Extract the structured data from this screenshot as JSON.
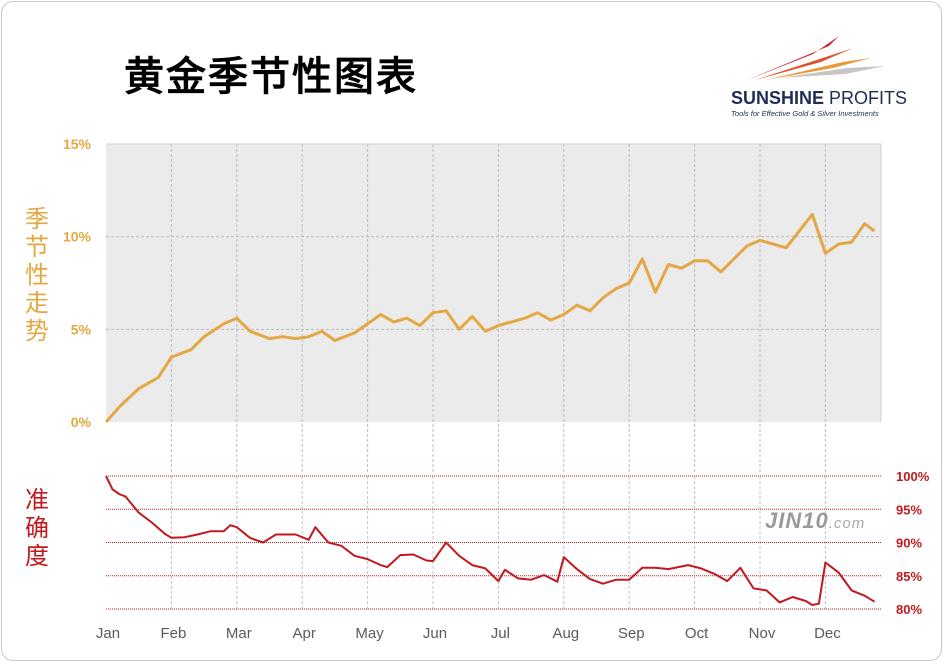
{
  "header": {
    "title": "黄金季节性图表"
  },
  "logo": {
    "name_bold": "SUNSHINE",
    "name_rest": " PROFITS",
    "tagline": "Tools for Effective Gold & Silver Investments"
  },
  "watermark": {
    "main": "JIN10",
    "suffix": ".com"
  },
  "colors": {
    "seasonal": "#e3a843",
    "accuracy": "#c2191f",
    "plot_bg": "#ebebeb",
    "grid": "#bdbdbd"
  },
  "chart_data": [
    {
      "type": "line",
      "ylabel": "季节性走势",
      "y_ticks": [
        "15%",
        "10%",
        "5%",
        "0%"
      ],
      "ylim": [
        0,
        15
      ],
      "grid": true,
      "categories": [
        "Jan",
        "Feb",
        "Mar",
        "Apr",
        "May",
        "Jun",
        "Jul",
        "Aug",
        "Sep",
        "Oct",
        "Nov",
        "Dec"
      ],
      "series": [
        {
          "x": [
            0,
            0.2,
            0.5,
            0.8,
            1.0,
            1.3,
            1.5,
            1.8,
            2.0,
            2.2,
            2.5,
            2.7,
            2.9,
            3.1,
            3.3,
            3.5,
            3.8,
            4.0,
            4.2,
            4.4,
            4.6,
            4.8,
            5.0,
            5.2,
            5.4,
            5.6,
            5.8,
            6.0,
            6.2,
            6.4,
            6.6,
            6.8,
            7.0,
            7.2,
            7.4,
            7.6,
            7.8,
            8.0,
            8.2,
            8.4,
            8.6,
            8.8,
            9.0,
            9.2,
            9.4,
            9.6,
            9.8,
            10.0,
            10.2,
            10.4,
            10.6,
            10.8,
            11.0,
            11.2,
            11.4,
            11.6,
            11.75
          ],
          "values": [
            0.0,
            0.8,
            1.8,
            2.4,
            3.5,
            3.9,
            4.6,
            5.3,
            5.6,
            4.9,
            4.5,
            4.6,
            4.5,
            4.6,
            4.9,
            4.4,
            4.8,
            5.3,
            5.8,
            5.4,
            5.6,
            5.2,
            5.9,
            6.0,
            5.0,
            5.7,
            4.9,
            5.2,
            5.4,
            5.6,
            5.9,
            5.5,
            5.8,
            6.3,
            6.0,
            6.7,
            7.2,
            7.5,
            8.8,
            7.0,
            8.5,
            8.3,
            8.7,
            8.7,
            8.1,
            8.8,
            9.5,
            9.8,
            9.6,
            9.4,
            10.3,
            11.2,
            9.1,
            9.6,
            9.7,
            10.7,
            10.3
          ]
        }
      ]
    },
    {
      "type": "line",
      "ylabel": "准确度",
      "y_ticks": [
        "100%",
        "95%",
        "90%",
        "85%",
        "80%"
      ],
      "ylim": [
        80,
        100
      ],
      "grid": true,
      "categories": [
        "Jan",
        "Feb",
        "Mar",
        "Apr",
        "May",
        "Jun",
        "Jul",
        "Aug",
        "Sep",
        "Oct",
        "Nov",
        "Dec"
      ],
      "series": [
        {
          "x": [
            0,
            0.1,
            0.2,
            0.3,
            0.5,
            0.7,
            0.9,
            1.0,
            1.2,
            1.4,
            1.6,
            1.8,
            1.9,
            2.0,
            2.2,
            2.4,
            2.6,
            2.9,
            3.1,
            3.2,
            3.4,
            3.6,
            3.8,
            4.0,
            4.2,
            4.3,
            4.5,
            4.7,
            4.9,
            5.0,
            5.2,
            5.4,
            5.6,
            5.8,
            6.0,
            6.1,
            6.3,
            6.5,
            6.7,
            6.9,
            7.0,
            7.2,
            7.4,
            7.6,
            7.8,
            8.0,
            8.2,
            8.4,
            8.6,
            8.9,
            9.1,
            9.3,
            9.5,
            9.7,
            9.9,
            10.1,
            10.3,
            10.5,
            10.7,
            10.8,
            10.9,
            11.0,
            11.2,
            11.4,
            11.6,
            11.75
          ],
          "values": [
            100.0,
            98.0,
            97.3,
            96.9,
            94.5,
            93.0,
            91.3,
            90.7,
            90.8,
            91.2,
            91.7,
            91.7,
            92.6,
            92.3,
            90.7,
            90.0,
            91.2,
            91.2,
            90.4,
            92.3,
            90.0,
            89.5,
            88.0,
            87.5,
            86.6,
            86.3,
            88.1,
            88.2,
            87.3,
            87.2,
            90.0,
            88.0,
            86.6,
            86.1,
            84.2,
            85.9,
            84.6,
            84.4,
            85.1,
            84.1,
            87.8,
            86.0,
            84.5,
            83.8,
            84.4,
            84.4,
            86.2,
            86.2,
            86.0,
            86.6,
            86.1,
            85.3,
            84.2,
            86.2,
            83.1,
            82.8,
            81.0,
            81.8,
            81.2,
            80.6,
            80.8,
            87.0,
            85.5,
            82.8,
            82.0,
            81.1
          ]
        }
      ]
    }
  ]
}
